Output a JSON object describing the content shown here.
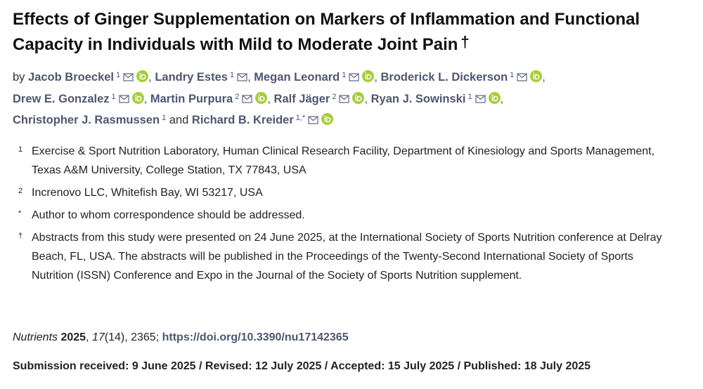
{
  "header": {
    "title": "Effects of Ginger Supplementation on Markers of Inflammation and Functional Capacity in Individuals with Mild to Moderate Joint Pain",
    "title_mark": "†",
    "by": "by",
    "and": "and",
    "separator": ",",
    "authors": [
      {
        "name": "Jacob Broeckel",
        "affiliation": "1"
      },
      {
        "name": "Landry Estes",
        "affiliation": "1"
      },
      {
        "name": "Megan Leonard",
        "affiliation": "1"
      },
      {
        "name": "Broderick L. Dickerson",
        "affiliation": "1"
      },
      {
        "name": "Drew E. Gonzalez",
        "affiliation": "1"
      },
      {
        "name": "Martin Purpura",
        "affiliation": "2"
      },
      {
        "name": "Ralf Jäger",
        "affiliation": "2"
      },
      {
        "name": "Ryan J. Sowinski",
        "affiliation": "1"
      },
      {
        "name": "Christopher J. Rasmussen",
        "affiliation": "1"
      },
      {
        "name": "Richard B. Kreider",
        "affiliation": "1,*"
      }
    ]
  },
  "affiliations": [
    {
      "marker": "1",
      "text": "Exercise & Sport Nutrition Laboratory, Human Clinical Research Facility, Department of Kinesiology and Sports Management, Texas A&M University, College Station, TX 77843, USA"
    },
    {
      "marker": "2",
      "text": "Increnovo LLC, Whitefish Bay, WI 53217, USA"
    },
    {
      "marker": "*",
      "text": "Author to whom correspondence should be addressed."
    },
    {
      "marker": "†",
      "text": "Abstracts from this study were presented on 24 June 2025, at the International Society of Sports Nutrition conference at Delray Beach, FL, USA. The abstracts will be published in the Proceedings of the Twenty-Second International Society of Sports Nutrition (ISSN) Conference and Expo in the Journal of the Society of Sports Nutrition supplement."
    }
  ],
  "citation": {
    "journal": "Nutrients",
    "year": "2025",
    "volume": "17",
    "issue": "(14)",
    "article": ", 2365;",
    "doi": "https://doi.org/10.3390/nu17142365"
  },
  "dates": "Submission received: 9 June 2025 / Revised: 12 July 2025 / Accepted: 15 July 2025 / Published: 18 July 2025"
}
